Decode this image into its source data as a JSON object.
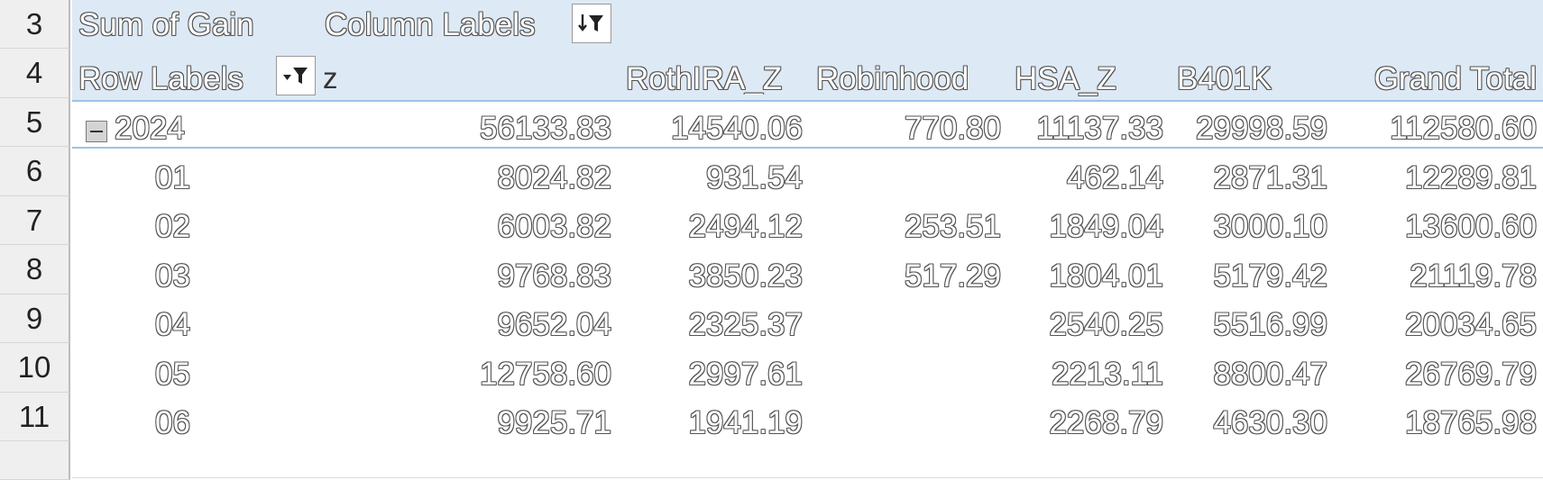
{
  "row_numbers": [
    "3",
    "4",
    "5",
    "6",
    "7",
    "8",
    "9",
    "10",
    "11"
  ],
  "pivot": {
    "value_field": "Sum of Gain",
    "column_labels_caption": "Column Labels",
    "row_labels_caption": "Row Labels",
    "z_label": "z",
    "columns": [
      "RothIRA_Z",
      "Robinhood",
      "HSA_Z",
      "B401K",
      "Grand Total"
    ],
    "year_row": {
      "label": "2024",
      "values": [
        "56133.83",
        "14540.06",
        "770.80",
        "11137.33",
        "29998.59",
        "112580.60"
      ]
    },
    "month_rows": [
      {
        "label": "01",
        "values": [
          "8024.82",
          "931.54",
          "",
          "462.14",
          "2871.31",
          "12289.81"
        ]
      },
      {
        "label": "02",
        "values": [
          "6003.82",
          "2494.12",
          "253.51",
          "1849.04",
          "3000.10",
          "13600.60"
        ]
      },
      {
        "label": "03",
        "values": [
          "9768.83",
          "3850.23",
          "517.29",
          "1804.01",
          "5179.42",
          "21119.78"
        ]
      },
      {
        "label": "04",
        "values": [
          "9652.04",
          "2325.37",
          "",
          "2540.25",
          "5516.99",
          "20034.65"
        ]
      },
      {
        "label": "05",
        "values": [
          "12758.60",
          "2997.61",
          "",
          "2213.11",
          "8800.47",
          "26769.79"
        ]
      },
      {
        "label": "06",
        "values": [
          "9925.71",
          "1941.19",
          "",
          "2268.79",
          "4630.30",
          "18765.98"
        ]
      }
    ]
  },
  "icons": {
    "column_filter": "filter-sort-icon",
    "row_filter": "filter-dropdown-icon",
    "collapse": "collapse-minus-icon"
  },
  "colors": {
    "header_band": "#dde9f5",
    "total_border": "#9dc3e6",
    "row_header_bg": "#efefef"
  }
}
